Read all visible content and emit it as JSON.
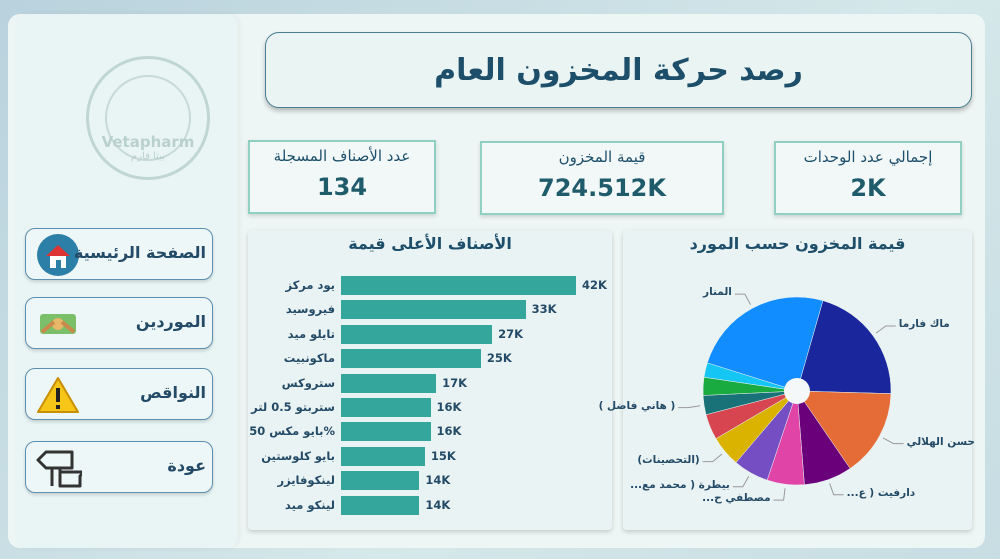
{
  "logo": {
    "text": "Vetapharm",
    "text_ar": "بيتا فارم"
  },
  "nav": [
    {
      "label": "الصفحة الرئيسية",
      "icon": "home-icon"
    },
    {
      "label": "الموردين",
      "icon": "money-handshake-icon"
    },
    {
      "label": "النواقص",
      "icon": "warning-icon"
    },
    {
      "label": "عودة",
      "icon": "signpost-back-icon"
    }
  ],
  "title": "رصد حركة المخزون العام",
  "kpis": [
    {
      "label": "عدد الأصناف المسجلة",
      "value": "134"
    },
    {
      "label": "قيمة المخزون",
      "value": "724.512K"
    },
    {
      "label": "إجمالي عدد الوحدات",
      "value": "2K"
    }
  ],
  "colors": {
    "bar": "#35a69b",
    "text": "#1d4f6b",
    "kpi_border": "#8fd0c3"
  },
  "chart_data": [
    {
      "type": "bar",
      "orientation": "horizontal",
      "title": "الأصناف الأعلى قيمة",
      "categories": [
        "يود مركز",
        "فيروسيد",
        "تايلو ميد",
        "ماكونبيت",
        "ستروكس",
        "ستربتو 0.5 لتر",
        "%بايو مكس 50",
        "بايو كلوستين",
        "لينكوفايزر",
        "لينكو ميد"
      ],
      "values": [
        42,
        33,
        27,
        25,
        17,
        16,
        16,
        15,
        14,
        14
      ],
      "data_labels": [
        "42K",
        "33K",
        "27K",
        "25K",
        "17K",
        "16K",
        "16K",
        "15K",
        "14K",
        "14K"
      ],
      "unit": "K"
    },
    {
      "type": "pie",
      "donut": true,
      "title": "قيمة المخزون حسب المورد",
      "slices": [
        {
          "label": "ماك فارما",
          "share": 21,
          "color": "#1a279c"
        },
        {
          "label": "حسن الهلالي",
          "share": 15,
          "color": "#e66c37"
        },
        {
          "label": "دارفيت ( ع...",
          "share": 8.3,
          "color": "#6b007b"
        },
        {
          "label": "مصطفي ح...",
          "share": 6.4,
          "color": "#e044a7"
        },
        {
          "label": "بيطرة ( محمد مع...",
          "share": 6.1,
          "color": "#744ec2"
        },
        {
          "label": "(التحصينات)",
          "share": 5.3,
          "color": "#d9b300"
        },
        {
          "label": "",
          "share": 4.4,
          "color": "#d64550"
        },
        {
          "label": "( هاني فاضل )",
          "share": 3.3,
          "color": "#197278"
        },
        {
          "label": "",
          "share": 3.1,
          "color": "#1aab40"
        },
        {
          "label": "",
          "share": 2.5,
          "color": "#15c6f4"
        },
        {
          "label": "المنار",
          "share": 24.6,
          "color": "#118dff"
        }
      ]
    }
  ]
}
